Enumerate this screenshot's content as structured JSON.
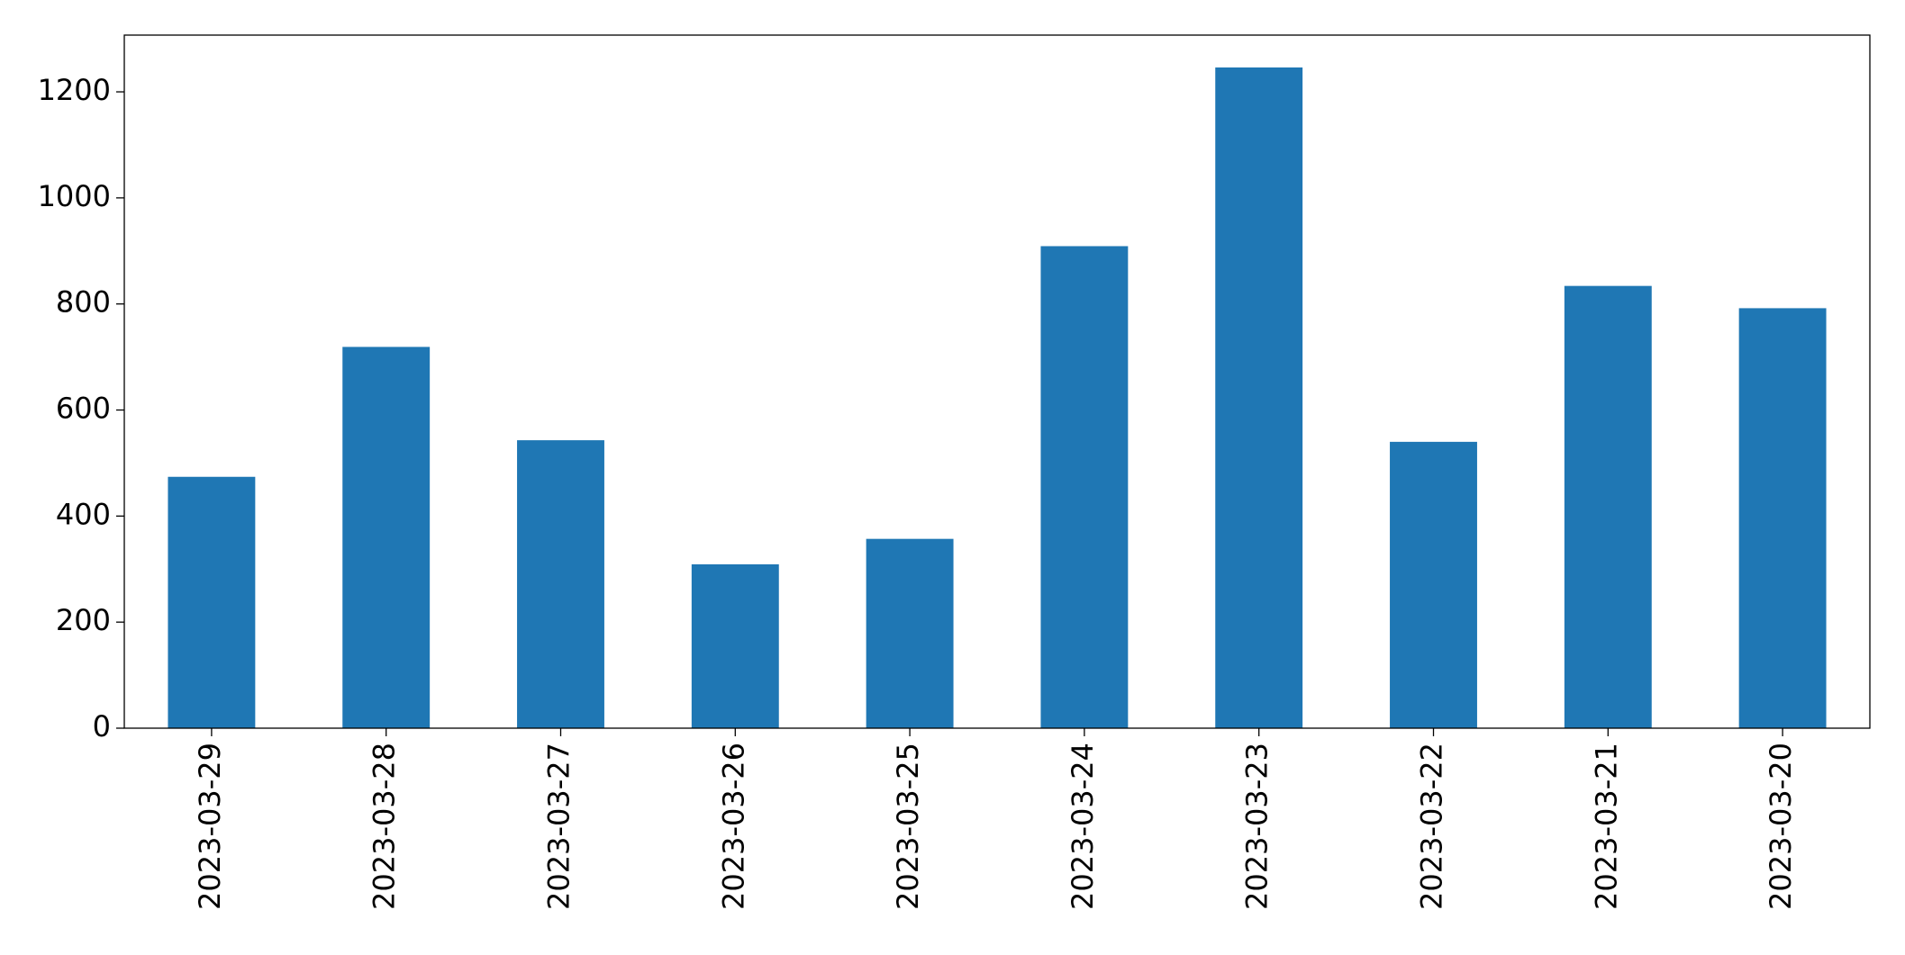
{
  "chart_data": {
    "type": "bar",
    "categories": [
      "2023-03-29",
      "2023-03-28",
      "2023-03-27",
      "2023-03-26",
      "2023-03-25",
      "2023-03-24",
      "2023-03-23",
      "2023-03-22",
      "2023-03-21",
      "2023-03-20"
    ],
    "values": [
      474,
      719,
      543,
      309,
      357,
      909,
      1246,
      540,
      834,
      792
    ],
    "color": "#1f77b4",
    "ylim": [
      0,
      1307
    ],
    "yticks": [
      0,
      200,
      400,
      600,
      800,
      1000,
      1200
    ],
    "grid": false
  }
}
